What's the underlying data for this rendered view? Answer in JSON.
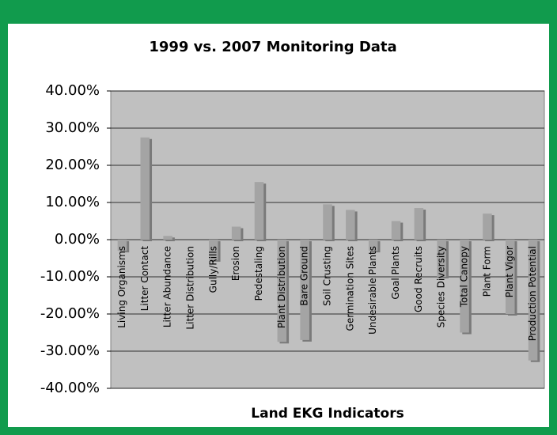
{
  "chart_data": {
    "type": "bar",
    "title": "1999 vs. 2007 Monitoring Data",
    "x_label": "Land EKG Indicators",
    "categories": [
      "Living Organisms",
      "Litter Contact",
      "Litter Abundance",
      "Litter Distribution",
      "Gully/Rills",
      "Erosion",
      "Pedestaling",
      "Plant Distribution",
      "Bare Ground",
      "Soil Crusting",
      "Germination Sites",
      "Undesirable Plants",
      "Goal Plants",
      "Good Recruits",
      "Species Diversity",
      "Total Canopy",
      "Plant Form",
      "Plant Vigor",
      "Production Potential"
    ],
    "values": [
      -3,
      27.5,
      1,
      0,
      -5.5,
      3.5,
      15.5,
      -27.5,
      -27,
      9.5,
      8,
      -3,
      5,
      8.5,
      -10,
      -25,
      7,
      -20,
      -32.5
    ],
    "color": "#a4a4a4",
    "ylim": [
      -40,
      40
    ],
    "yticks": [
      {
        "value": -40,
        "label": "-40.00%"
      },
      {
        "value": -30,
        "label": "-30.00%"
      },
      {
        "value": -20,
        "label": "-20.00%"
      },
      {
        "value": -10,
        "label": "-10.00%"
      },
      {
        "value": 0,
        "label": "0.00%"
      },
      {
        "value": 10,
        "label": "10.00%"
      },
      {
        "value": 20,
        "label": "20.00%"
      },
      {
        "value": 30,
        "label": "30.00%"
      },
      {
        "value": 40,
        "label": "40.00%"
      }
    ],
    "grid": true
  }
}
